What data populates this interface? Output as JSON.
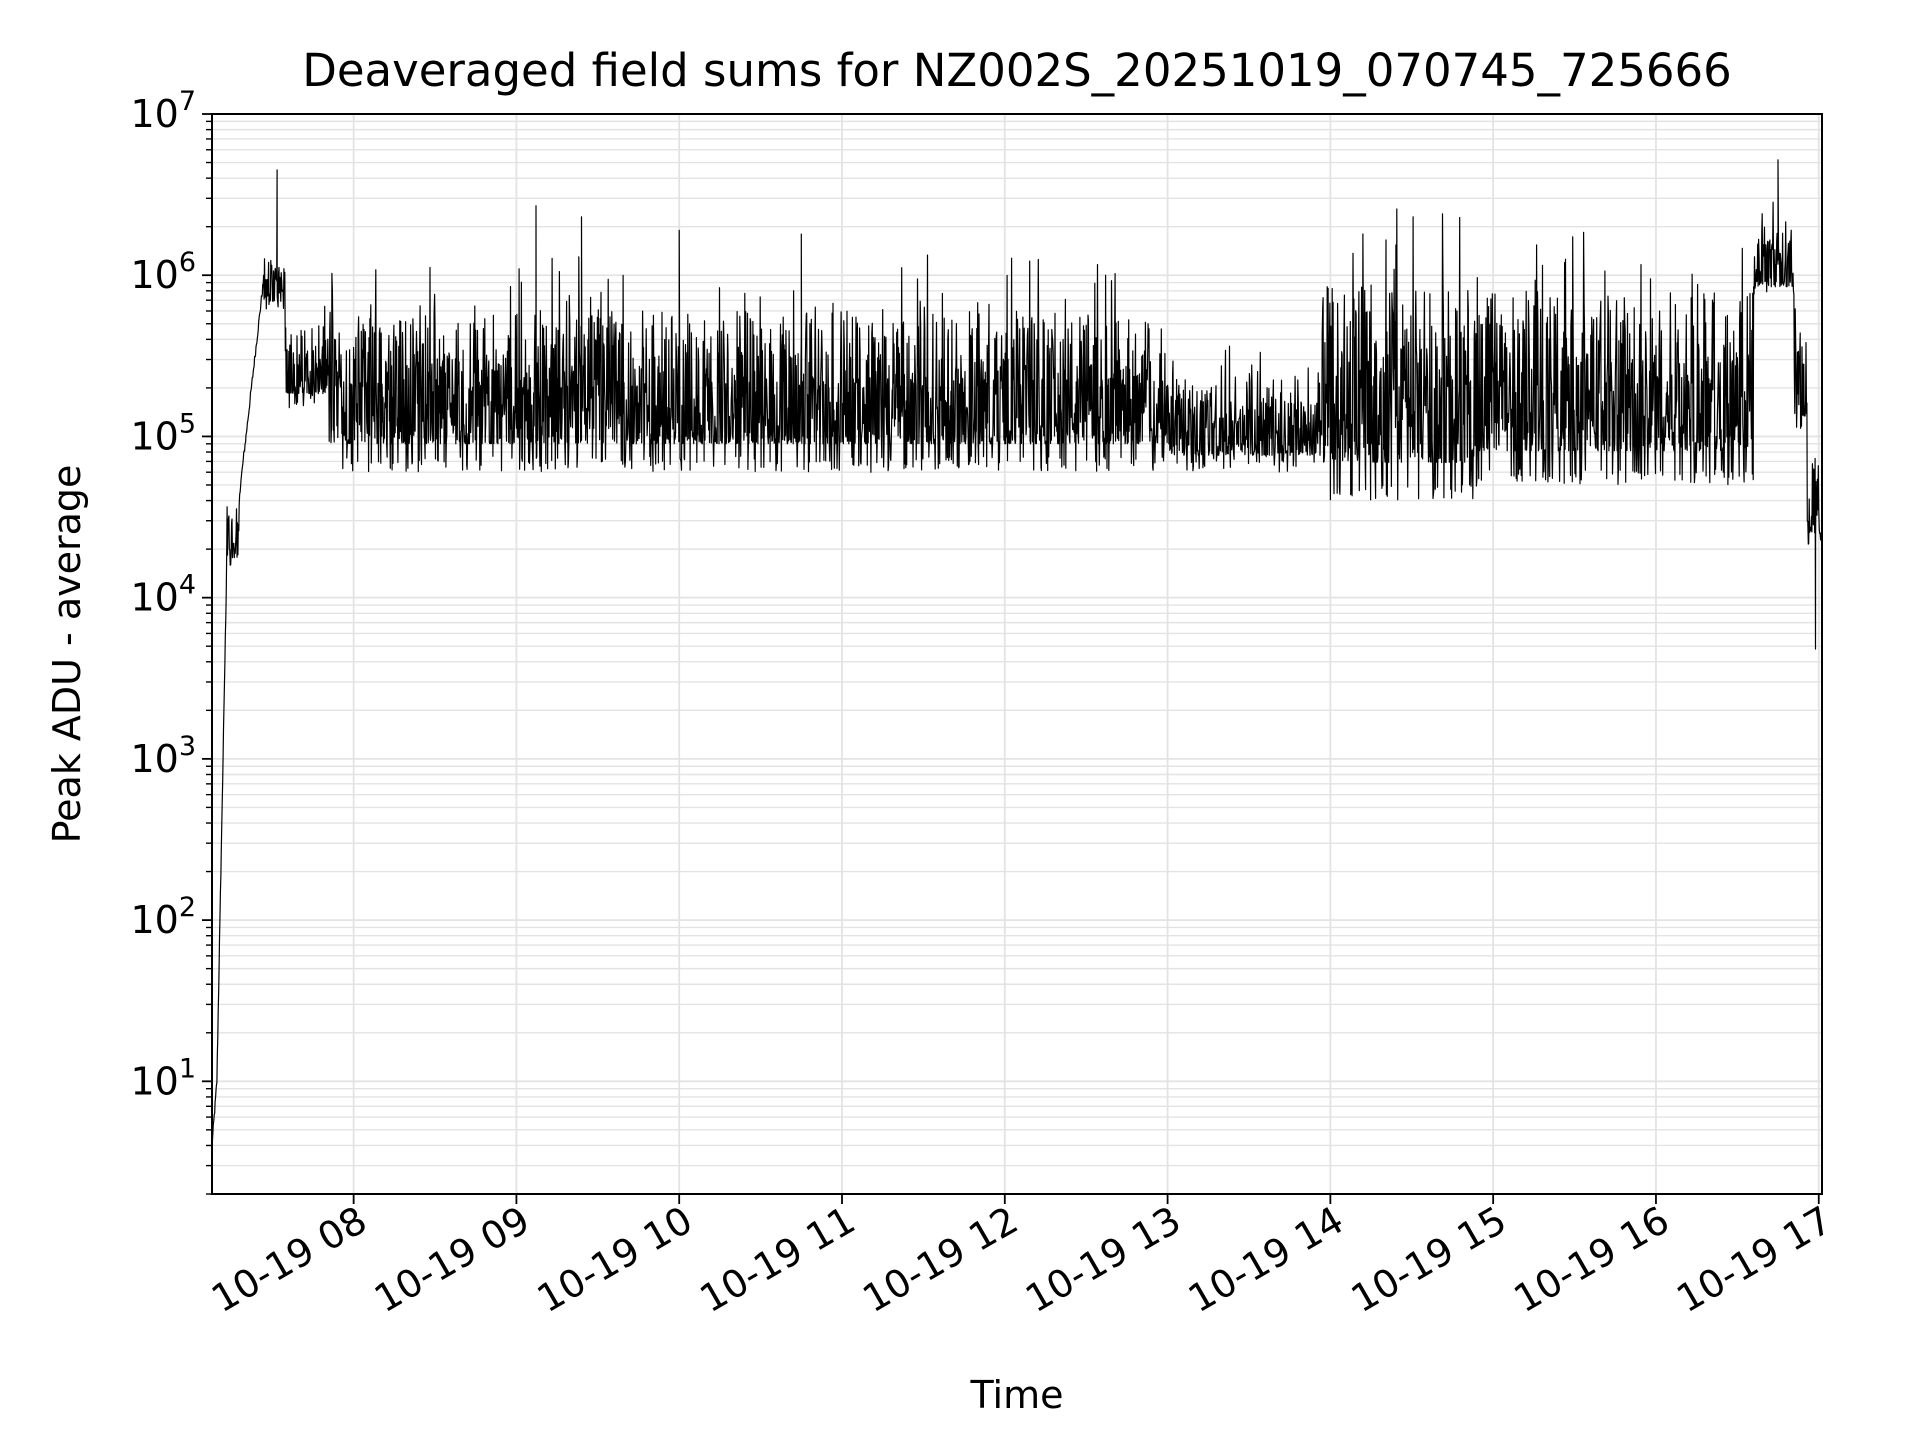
{
  "chart_data": {
    "type": "line",
    "title": "Deaveraged field sums for NZ002S_20251019_070745_725666",
    "xlabel": "Time",
    "ylabel": "Peak ADU - average",
    "yscale": "log",
    "ylim": [
      2,
      10000000
    ],
    "xlim_hours": [
      7.13,
      17.02
    ],
    "grid": true,
    "grid_minor": true,
    "legend": "none",
    "line_color": "#000000",
    "grid_color": "#e3e3e3",
    "x_ticks": [
      {
        "hour": 8,
        "label": "10-19 08"
      },
      {
        "hour": 9,
        "label": "10-19 09"
      },
      {
        "hour": 10,
        "label": "10-19 10"
      },
      {
        "hour": 11,
        "label": "10-19 11"
      },
      {
        "hour": 12,
        "label": "10-19 12"
      },
      {
        "hour": 13,
        "label": "10-19 13"
      },
      {
        "hour": 14,
        "label": "10-19 14"
      },
      {
        "hour": 15,
        "label": "10-19 15"
      },
      {
        "hour": 16,
        "label": "10-19 16"
      },
      {
        "hour": 17,
        "label": "10-19 17"
      }
    ],
    "y_ticks": [
      {
        "value": 10,
        "base": "10",
        "exp": "1"
      },
      {
        "value": 100,
        "base": "10",
        "exp": "2"
      },
      {
        "value": 1000,
        "base": "10",
        "exp": "3"
      },
      {
        "value": 10000,
        "base": "10",
        "exp": "4"
      },
      {
        "value": 100000,
        "base": "10",
        "exp": "5"
      },
      {
        "value": 1000000,
        "base": "10",
        "exp": "6"
      },
      {
        "value": 10000000,
        "base": "10",
        "exp": "7"
      }
    ],
    "series": [
      {
        "name": "Peak ADU - average",
        "envelope": [
          {
            "start": 7.13,
            "end": 7.16,
            "low": 4,
            "high": 10,
            "kind": "ramp"
          },
          {
            "start": 7.16,
            "end": 7.22,
            "low": 10,
            "high": 15000,
            "kind": "ramp"
          },
          {
            "start": 7.22,
            "end": 7.3,
            "low": 15000,
            "high": 45000,
            "kind": "noise"
          },
          {
            "start": 7.3,
            "end": 7.45,
            "low": 45000,
            "high": 1000000,
            "kind": "ramp"
          },
          {
            "start": 7.45,
            "end": 7.58,
            "low": 600000,
            "high": 1500000,
            "kind": "noise"
          },
          {
            "start": 7.58,
            "end": 7.85,
            "low": 150000,
            "high": 600000,
            "kind": "noise"
          },
          {
            "start": 7.85,
            "end": 13.0,
            "low": 60000,
            "high": 900000,
            "kind": "noise"
          },
          {
            "start": 13.0,
            "end": 13.95,
            "low": 60000,
            "high": 300000,
            "kind": "noise"
          },
          {
            "start": 13.95,
            "end": 14.9,
            "low": 40000,
            "high": 1500000,
            "kind": "noise"
          },
          {
            "start": 14.9,
            "end": 16.6,
            "low": 50000,
            "high": 1300000,
            "kind": "noise"
          },
          {
            "start": 16.6,
            "end": 16.85,
            "low": 700000,
            "high": 2500000,
            "kind": "noise"
          },
          {
            "start": 16.85,
            "end": 16.93,
            "low": 100000,
            "high": 700000,
            "kind": "noise"
          },
          {
            "start": 16.93,
            "end": 17.02,
            "low": 20000,
            "high": 90000,
            "kind": "noise"
          }
        ],
        "spikes": [
          {
            "hour": 7.53,
            "value": 4500000
          },
          {
            "hour": 9.12,
            "value": 2700000
          },
          {
            "hour": 9.4,
            "value": 2300000
          },
          {
            "hour": 10.0,
            "value": 1900000
          },
          {
            "hour": 10.75,
            "value": 1800000
          },
          {
            "hour": 16.75,
            "value": 5200000
          },
          {
            "hour": 16.98,
            "value": 4800
          }
        ]
      }
    ]
  }
}
